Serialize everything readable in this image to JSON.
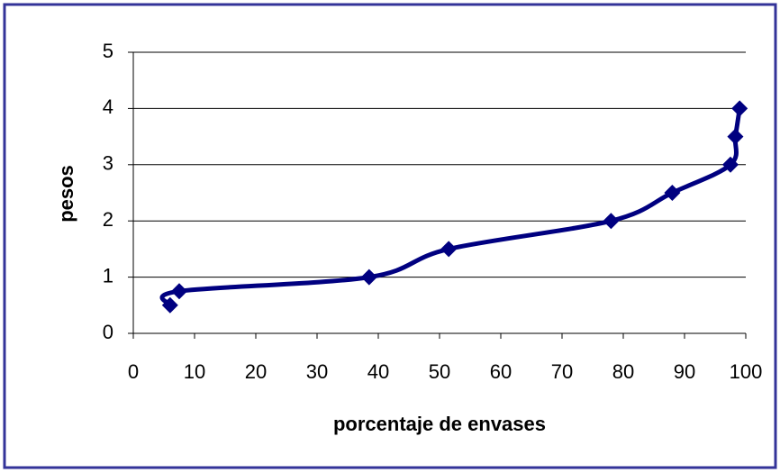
{
  "chart_data": {
    "type": "line",
    "x_label": "porcentaje de envases",
    "y_label": "pesos",
    "series": [
      {
        "name": null,
        "color": "#000080",
        "x": [
          6,
          7.5,
          38.5,
          51.5,
          78,
          88,
          97.5,
          98.3,
          99
        ],
        "values": [
          0.5,
          0.75,
          1,
          1.5,
          2,
          2.5,
          3,
          3.5,
          4
        ]
      }
    ],
    "xlim": [
      0,
      100
    ],
    "xticks": [
      0,
      10,
      20,
      30,
      40,
      50,
      60,
      70,
      80,
      90,
      100
    ],
    "ylim": [
      0,
      5
    ],
    "yticks": [
      0,
      1,
      2,
      3,
      4,
      5
    ],
    "grid": true,
    "smooth": true
  }
}
